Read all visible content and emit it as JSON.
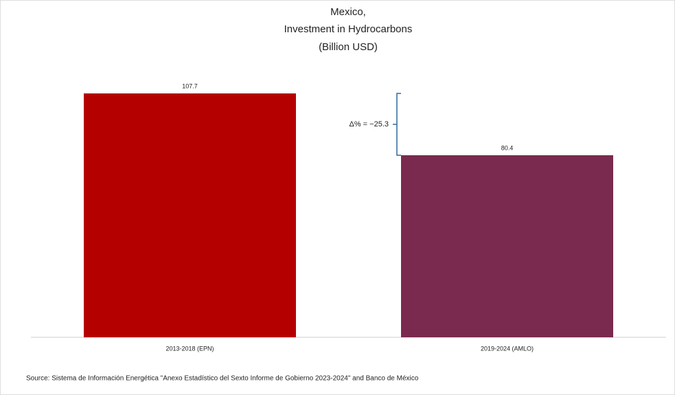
{
  "chart_data": {
    "type": "bar",
    "title": [
      "Mexico,",
      "Investment in Hydrocarbons",
      "(Billion USD)"
    ],
    "categories": [
      "2013-2018 (EPN)",
      "2019-2024 (AMLO)"
    ],
    "values": [
      107.7,
      80.4
    ],
    "colors": [
      "#b50000",
      "#7a2a4e"
    ],
    "annotation": "Δ% = −25.3",
    "source": "Source: Sistema de Información Energética \"Anexo Estadístico del Sexto Informe de Gobierno 2023-2024\" and Banco de México"
  }
}
